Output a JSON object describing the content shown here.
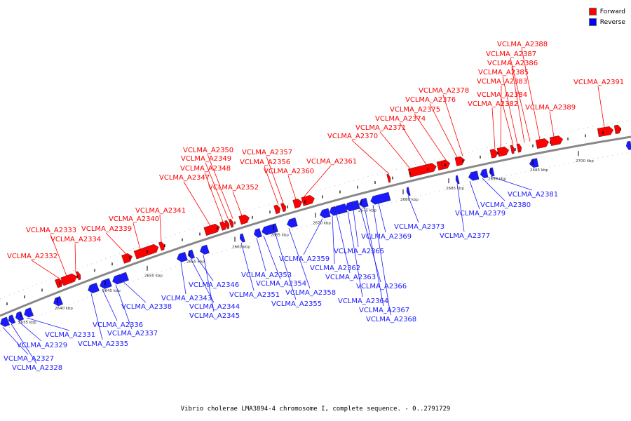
{
  "legend": [
    {
      "label": "Forward",
      "color": "#ff0000"
    },
    {
      "label": "Reverse",
      "color": "#0000ff"
    }
  ],
  "caption": "Vibrio cholerae LMA3894-4 chromosome I, complete sequence. - 0..2791729",
  "colors": {
    "forward": "#ff0000",
    "reverse": "#1a1aff",
    "backbone": "#888888"
  },
  "ticks": [
    "2635 kbp",
    "2640 kbp",
    "2645 kbp",
    "2650 kbp",
    "2655 kbp",
    "2660 kbp",
    "2665 kbp",
    "2670 kbp",
    "2675 kbp",
    "2680 kbp",
    "2685 kbp",
    "2690 kbp",
    "2695 kbp",
    "2700 kbp"
  ],
  "forward_labels": [
    "VCLMA_A2332",
    "VCLMA_A2333",
    "VCLMA_A2334",
    "VCLMA_A2339",
    "VCLMA_A2340",
    "VCLMA_A2341",
    "VCLMA_A2347",
    "VCLMA_A2348",
    "VCLMA_A2349",
    "VCLMA_A2350",
    "VCLMA_A2352",
    "VCLMA_A2356",
    "VCLMA_A2357",
    "VCLMA_A2360",
    "VCLMA_A2361",
    "VCLMA_A2370",
    "VCLMA_A2371",
    "VCLMA_A2374",
    "VCLMA_A2375",
    "VCLMA_A2376",
    "VCLMA_A2378",
    "VCLMA_A2382",
    "VCLMA_A2383",
    "VCLMA_A2384",
    "VCLMA_A2385",
    "VCLMA_A2386",
    "VCLMA_A2387",
    "VCLMA_A2388",
    "VCLMA_A2389",
    "VCLMA_A2391"
  ],
  "reverse_labels": [
    "VCLMA_A2327",
    "VCLMA_A2328",
    "VCLMA_A2329",
    "VCLMA_A2331",
    "VCLMA_A2335",
    "VCLMA_A2336",
    "VCLMA_A2337",
    "VCLMA_A2338",
    "VCLMA_A2343",
    "VCLMA_A2344",
    "VCLMA_A2345",
    "VCLMA_A2346",
    "VCLMA_A2351",
    "VCLMA_A2353",
    "VCLMA_A2354",
    "VCLMA_A2355",
    "VCLMA_A2358",
    "VCLMA_A2359",
    "VCLMA_A2362",
    "VCLMA_A2363",
    "VCLMA_A2364",
    "VCLMA_A2365",
    "VCLMA_A2366",
    "VCLMA_A2367",
    "VCLMA_A2368",
    "VCLMA_A2369",
    "VCLMA_A2373",
    "VCLMA_A2377",
    "VCLMA_A2379",
    "VCLMA_A2380",
    "VCLMA_A2381"
  ]
}
